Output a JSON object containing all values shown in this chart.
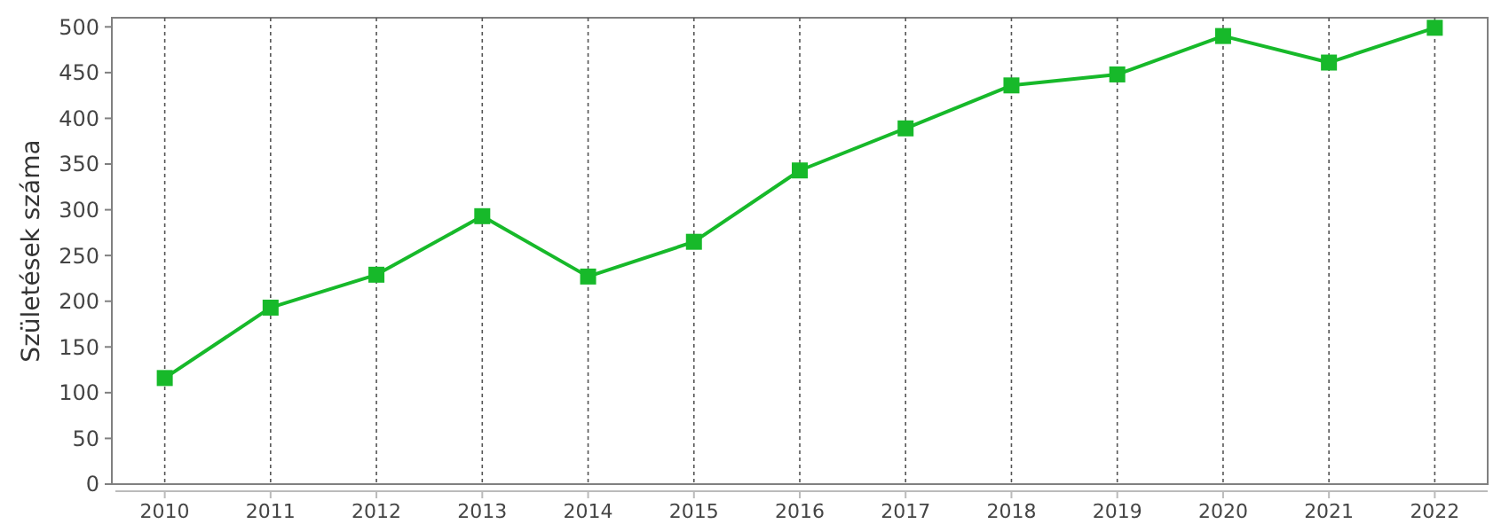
{
  "chart_data": {
    "type": "line",
    "ylabel": "Születések száma",
    "categories": [
      "2010",
      "2011",
      "2012",
      "2013",
      "2014",
      "2015",
      "2016",
      "2017",
      "2018",
      "2019",
      "2020",
      "2021",
      "2022"
    ],
    "series": [
      {
        "color": "#17b92a",
        "values": [
          116,
          193,
          229,
          293,
          227,
          265,
          343,
          389,
          436,
          448,
          490,
          461,
          499
        ]
      }
    ],
    "ylim": [
      0,
      510
    ],
    "yticks": [
      0,
      50,
      100,
      150,
      200,
      250,
      300,
      350,
      400,
      450,
      500
    ],
    "grid": "x",
    "marker": "square",
    "line_style": "solid"
  }
}
